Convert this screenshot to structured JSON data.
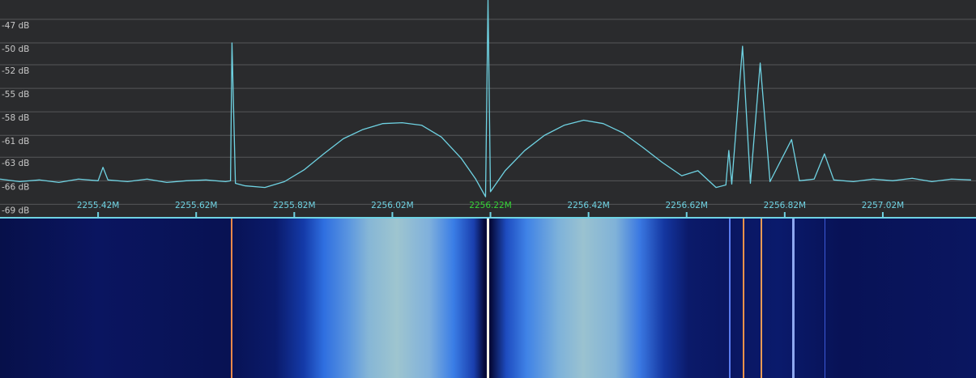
{
  "chart_data": {
    "type": "line",
    "x": [
      2255.22,
      2255.26,
      2255.3,
      2255.34,
      2255.38,
      2255.42,
      2255.43,
      2255.44,
      2255.48,
      2255.52,
      2255.56,
      2255.6,
      2255.64,
      2255.68,
      2255.69,
      2255.693,
      2255.7,
      2255.72,
      2255.76,
      2255.8,
      2255.84,
      2255.88,
      2255.92,
      2255.96,
      2256.0,
      2256.04,
      2256.08,
      2256.12,
      2256.16,
      2256.19,
      2256.21,
      2256.215,
      2256.22,
      2256.25,
      2256.29,
      2256.33,
      2256.37,
      2256.41,
      2256.45,
      2256.49,
      2256.53,
      2256.57,
      2256.61,
      2256.643,
      2256.68,
      2256.7,
      2256.706,
      2256.712,
      2256.734,
      2256.75,
      2256.77,
      2256.79,
      2256.834,
      2256.85,
      2256.88,
      2256.901,
      2256.92,
      2256.96,
      2257.0,
      2257.04,
      2257.08,
      2257.12,
      2257.16,
      2257.2
    ],
    "series": [
      {
        "color": "#6fd3e3",
        "values": [
          -66.0,
          -66.3,
          -66.1,
          -66.4,
          -66.0,
          -66.2,
          -64.6,
          -66.1,
          -66.3,
          -66.0,
          -66.4,
          -66.2,
          -66.1,
          -66.3,
          -66.2,
          -49.8,
          -66.5,
          -66.8,
          -67.0,
          -66.3,
          -64.9,
          -63.0,
          -61.2,
          -60.1,
          -59.4,
          -59.3,
          -59.6,
          -61.0,
          -63.5,
          -66.0,
          -68.1,
          -44.7,
          -67.5,
          -65.0,
          -62.6,
          -60.8,
          -59.6,
          -59.0,
          -59.4,
          -60.5,
          -62.2,
          -64.0,
          -65.6,
          -65.0,
          -67.0,
          -66.7,
          -62.6,
          -66.6,
          -50.2,
          -66.5,
          -52.2,
          -66.3,
          -61.3,
          -66.2,
          -66.0,
          -63.0,
          -66.1,
          -66.3,
          -66.0,
          -66.2,
          -65.9,
          -66.3,
          -66.0,
          -66.1
        ]
      }
    ],
    "xlim": [
      2255.22,
      2257.21
    ],
    "ylim": [
      -70.5,
      -44.7
    ],
    "xticks": [
      {
        "value": 2255.42,
        "label": "2255.42M"
      },
      {
        "value": 2255.62,
        "label": "2255.62M"
      },
      {
        "value": 2255.82,
        "label": "2255.82M"
      },
      {
        "value": 2256.02,
        "label": "2256.02M"
      },
      {
        "value": 2256.22,
        "label": "2256.22M",
        "color": "#35d335"
      },
      {
        "value": 2256.42,
        "label": "2256.42M"
      },
      {
        "value": 2256.62,
        "label": "2256.62M"
      },
      {
        "value": 2256.82,
        "label": "2256.82M"
      },
      {
        "value": 2257.02,
        "label": "2257.02M"
      }
    ],
    "yticks": [
      {
        "value": -47,
        "label": "-47 dB"
      },
      {
        "value": -49.8,
        "label": "-50 dB"
      },
      {
        "value": -52.4,
        "label": "-52 dB"
      },
      {
        "value": -55.2,
        "label": "-55 dB"
      },
      {
        "value": -58,
        "label": "-58 dB"
      },
      {
        "value": -60.8,
        "label": "-61 dB"
      },
      {
        "value": -63.4,
        "label": "-63 dB"
      },
      {
        "value": -66.2,
        "label": "-66 dB"
      },
      {
        "value": -69,
        "label": "-69 dB"
      }
    ],
    "grid": true
  }
}
